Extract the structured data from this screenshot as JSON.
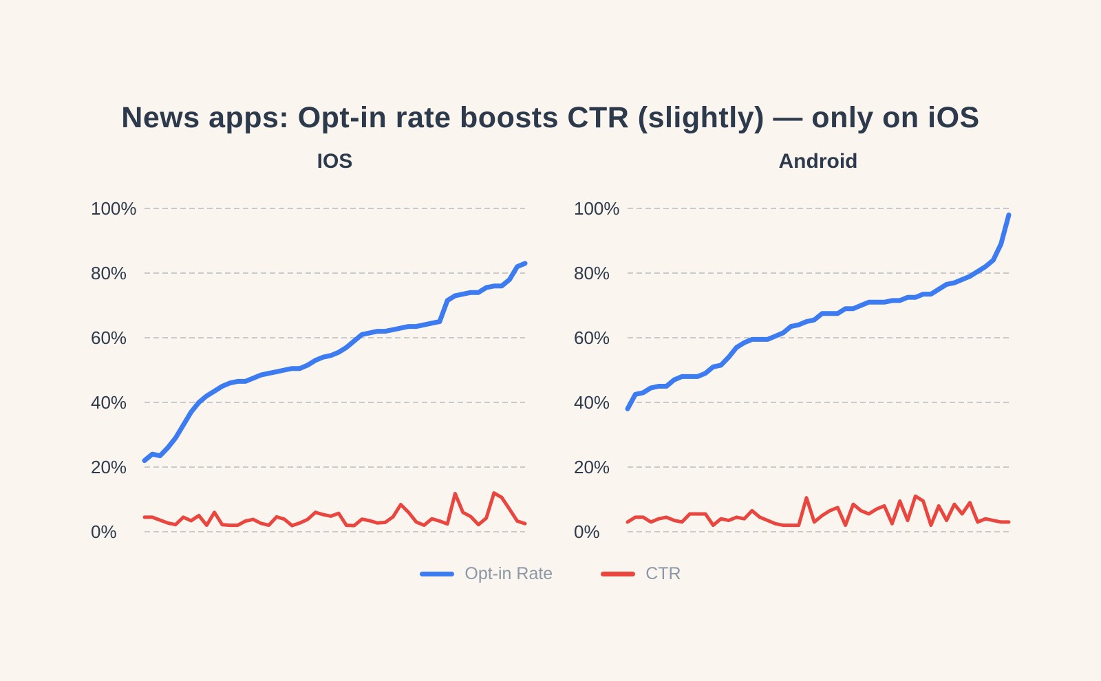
{
  "page": {
    "background_color": "#faf5ef",
    "text_color": "#2d3a4c",
    "gridline_color": "#c9c9c9"
  },
  "title": {
    "text": "News apps: Opt-in rate boosts CTR (slightly) — only on iOS"
  },
  "legend": {
    "text_color": "#8d97a5",
    "items": [
      {
        "label": "Opt-in Rate",
        "color": "#3d7bf0"
      },
      {
        "label": "CTR",
        "color": "#e8463f"
      }
    ]
  },
  "chart_data": [
    {
      "type": "line",
      "title": "IOS",
      "xlabel": "",
      "ylabel": "",
      "ylim": [
        0,
        100
      ],
      "yticks": [
        "100%",
        "80%",
        "60%",
        "40%",
        "20%",
        "0%"
      ],
      "grid": true,
      "legend_position": "bottom",
      "series": [
        {
          "name": "Opt-in Rate",
          "color": "#3d7bf0",
          "values": [
            22,
            24,
            23.5,
            26,
            29,
            33,
            37,
            40,
            42,
            43.5,
            45,
            46,
            46.5,
            46.5,
            47.5,
            48.5,
            49,
            49.5,
            50,
            50.5,
            50.5,
            51.5,
            53,
            54,
            54.5,
            55.5,
            57,
            59,
            61,
            61.5,
            62,
            62,
            62.5,
            63,
            63.5,
            63.5,
            64,
            64.5,
            65,
            71.5,
            73,
            73.5,
            74,
            74,
            75.5,
            76,
            76,
            78,
            82,
            83
          ]
        },
        {
          "name": "CTR",
          "color": "#e8463f",
          "values": [
            4.5,
            4.5,
            3.6,
            2.7,
            2.2,
            4.5,
            3.4,
            5,
            2,
            6,
            2.2,
            2,
            2,
            3.3,
            3.8,
            2.6,
            2,
            4.6,
            3.9,
            1.9,
            2.7,
            3.8,
            6,
            5.3,
            4.8,
            5.7,
            2,
            1.9,
            3.9,
            3.4,
            2.7,
            2.9,
            4.6,
            8.4,
            6,
            3,
            2,
            4,
            3.3,
            2.4,
            11.8,
            6,
            4.7,
            2.2,
            4.2,
            12,
            10.6,
            7,
            3.3,
            2.5
          ]
        }
      ]
    },
    {
      "type": "line",
      "title": "Android",
      "xlabel": "",
      "ylabel": "",
      "ylim": [
        0,
        100
      ],
      "yticks": [
        "100%",
        "80%",
        "60%",
        "40%",
        "20%",
        "0%"
      ],
      "grid": true,
      "legend_position": "bottom",
      "series": [
        {
          "name": "Opt-in Rate",
          "color": "#3d7bf0",
          "values": [
            38,
            42.5,
            43,
            44.5,
            45,
            45,
            47,
            48,
            48,
            48,
            49,
            51,
            51.5,
            54,
            57,
            58.5,
            59.5,
            59.5,
            59.5,
            60.5,
            61.5,
            63.5,
            64,
            65,
            65.5,
            67.5,
            67.5,
            67.5,
            69,
            69,
            70,
            71,
            71,
            71,
            71.5,
            71.5,
            72.5,
            72.5,
            73.5,
            73.5,
            75,
            76.5,
            77,
            78,
            79,
            80.5,
            82,
            84,
            89,
            98
          ]
        },
        {
          "name": "CTR",
          "color": "#e8463f",
          "values": [
            3,
            4.5,
            4.5,
            3,
            4,
            4.5,
            3.5,
            3,
            5.5,
            5.5,
            5.5,
            2,
            4,
            3.5,
            4.5,
            4,
            6.5,
            4.5,
            3.5,
            2.5,
            2,
            2,
            2,
            10.5,
            3,
            5,
            6.5,
            7.5,
            2,
            8.5,
            6.5,
            5.5,
            7,
            8,
            2.5,
            9.5,
            3.5,
            11,
            9.5,
            2,
            8,
            3.5,
            8.5,
            5.5,
            9,
            3,
            4,
            3.5,
            3,
            3
          ]
        }
      ]
    }
  ]
}
